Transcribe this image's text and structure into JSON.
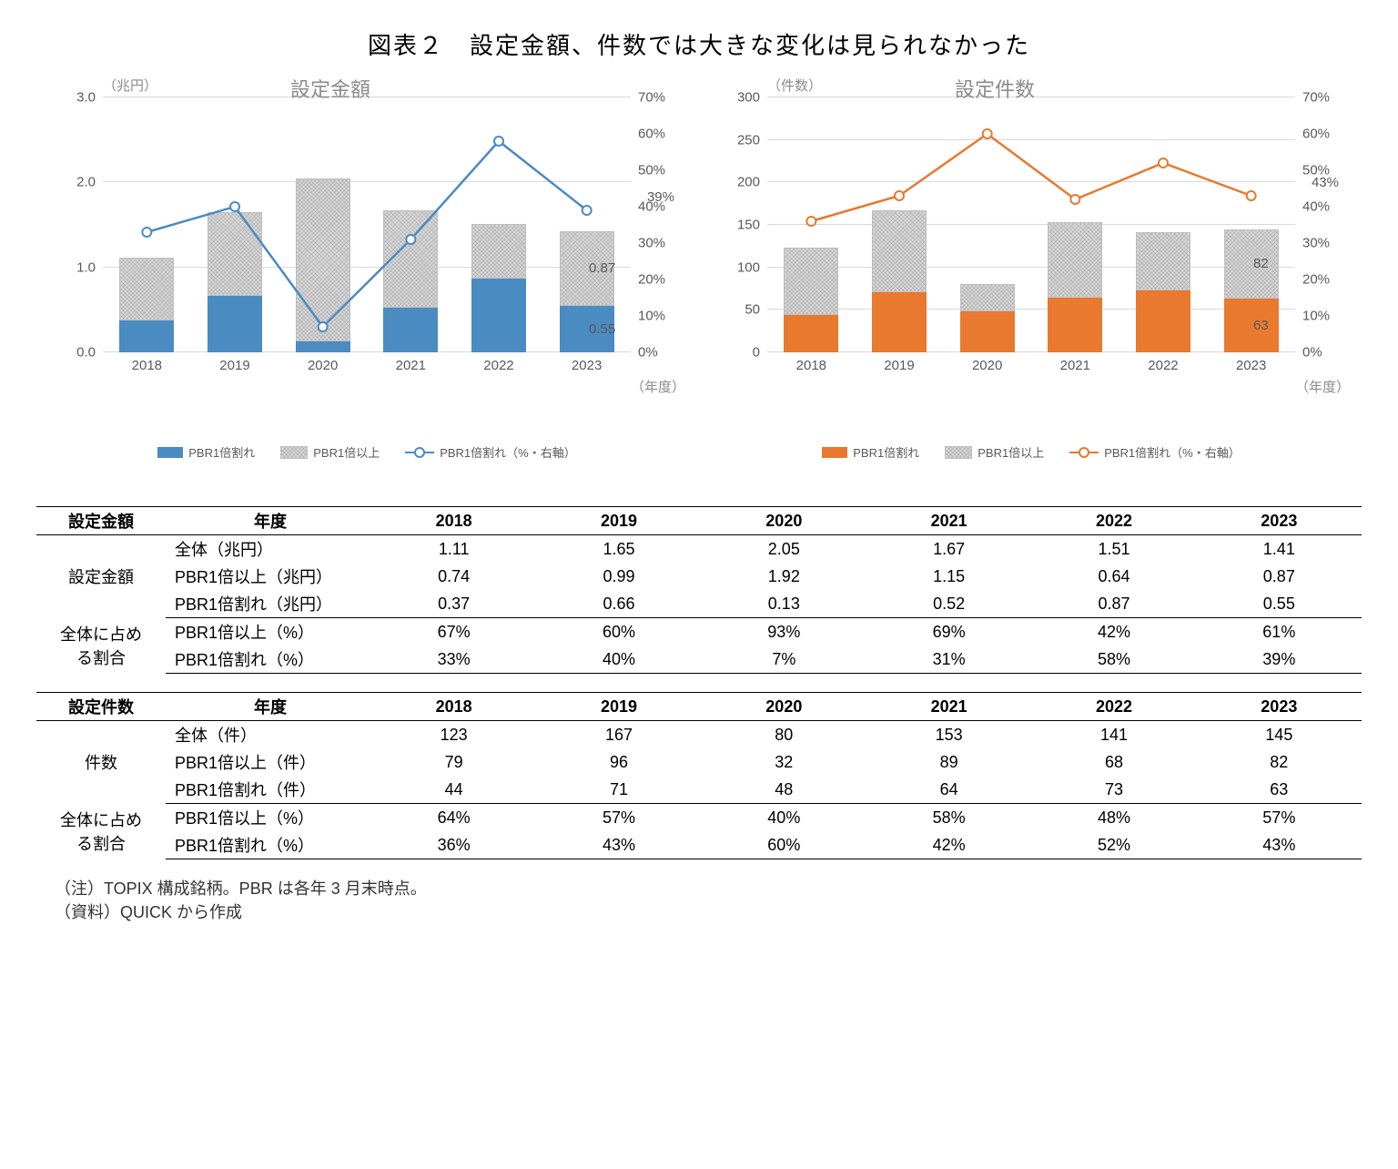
{
  "title": "図表２　設定金額、件数では大きな変化は見られなかった",
  "years": [
    "2018",
    "2019",
    "2020",
    "2021",
    "2022",
    "2023"
  ],
  "chart_left": {
    "subtitle": "設定金額",
    "unit": "（兆円）",
    "y_left": {
      "max": 3.0,
      "step": 1.0
    },
    "y_right": {
      "max": 70,
      "step": 10,
      "suffix": "%"
    },
    "axis_note": "（年度）",
    "bar_bottom_color": "#4a8bc2",
    "line_color": "#4a8bc2",
    "bottom_values": [
      0.37,
      0.66,
      0.13,
      0.52,
      0.87,
      0.55
    ],
    "top_values": [
      0.74,
      0.99,
      1.92,
      1.15,
      0.64,
      0.87
    ],
    "pct_values": [
      33,
      40,
      7,
      31,
      58,
      39
    ],
    "end_pct_label": "39%",
    "end_top_label": "0.87",
    "end_bottom_label": "0.55",
    "legend": [
      "PBR1倍割れ",
      "PBR1倍以上",
      "PBR1倍割れ（%・右軸）"
    ]
  },
  "chart_right": {
    "subtitle": "設定件数",
    "unit": "（件数）",
    "y_left": {
      "max": 300,
      "step": 50
    },
    "y_right": {
      "max": 70,
      "step": 10,
      "suffix": "%"
    },
    "axis_note": "（年度）",
    "bar_bottom_color": "#e8792e",
    "line_color": "#e8792e",
    "bottom_values": [
      44,
      71,
      48,
      64,
      73,
      63
    ],
    "top_values": [
      79,
      96,
      32,
      89,
      68,
      82
    ],
    "pct_values": [
      36,
      43,
      60,
      42,
      52,
      43
    ],
    "end_pct_label": "43%",
    "end_top_label": "82",
    "end_bottom_label": "63",
    "legend": [
      "PBR1倍割れ",
      "PBR1倍以上",
      "PBR1倍割れ（%・右軸）"
    ]
  },
  "table1": {
    "header_label": "設定金額",
    "year_label": "年度",
    "section1_label": "設定金額",
    "section2_label_a": "全体に占め",
    "section2_label_b": "る割合",
    "rows": [
      {
        "label": "全体（兆円）",
        "vals": [
          "1.11",
          "1.65",
          "2.05",
          "1.67",
          "1.51",
          "1.41"
        ]
      },
      {
        "label": "PBR1倍以上（兆円）",
        "vals": [
          "0.74",
          "0.99",
          "1.92",
          "1.15",
          "0.64",
          "0.87"
        ]
      },
      {
        "label": "PBR1倍割れ（兆円）",
        "vals": [
          "0.37",
          "0.66",
          "0.13",
          "0.52",
          "0.87",
          "0.55"
        ]
      },
      {
        "label": "PBR1倍以上（%）",
        "vals": [
          "67%",
          "60%",
          "93%",
          "69%",
          "42%",
          "61%"
        ]
      },
      {
        "label": "PBR1倍割れ（%）",
        "vals": [
          "33%",
          "40%",
          "7%",
          "31%",
          "58%",
          "39%"
        ]
      }
    ]
  },
  "table2": {
    "header_label": "設定件数",
    "year_label": "年度",
    "section1_label": "件数",
    "section2_label_a": "全体に占め",
    "section2_label_b": "る割合",
    "rows": [
      {
        "label": "全体（件）",
        "vals": [
          "123",
          "167",
          "80",
          "153",
          "141",
          "145"
        ]
      },
      {
        "label": "PBR1倍以上（件）",
        "vals": [
          "79",
          "96",
          "32",
          "89",
          "68",
          "82"
        ]
      },
      {
        "label": "PBR1倍割れ（件）",
        "vals": [
          "44",
          "71",
          "48",
          "64",
          "73",
          "63"
        ]
      },
      {
        "label": "PBR1倍以上（%）",
        "vals": [
          "64%",
          "57%",
          "40%",
          "58%",
          "48%",
          "57%"
        ]
      },
      {
        "label": "PBR1倍割れ（%）",
        "vals": [
          "36%",
          "43%",
          "60%",
          "42%",
          "52%",
          "43%"
        ]
      }
    ]
  },
  "notes": [
    "（注）TOPIX 構成銘柄。PBR は各年 3 月末時点。",
    "（資料）QUICK から作成"
  ],
  "colors": {
    "grid": "#d9d9d9",
    "text_muted": "#595959",
    "pattern_fill": "#d9d9d9"
  }
}
